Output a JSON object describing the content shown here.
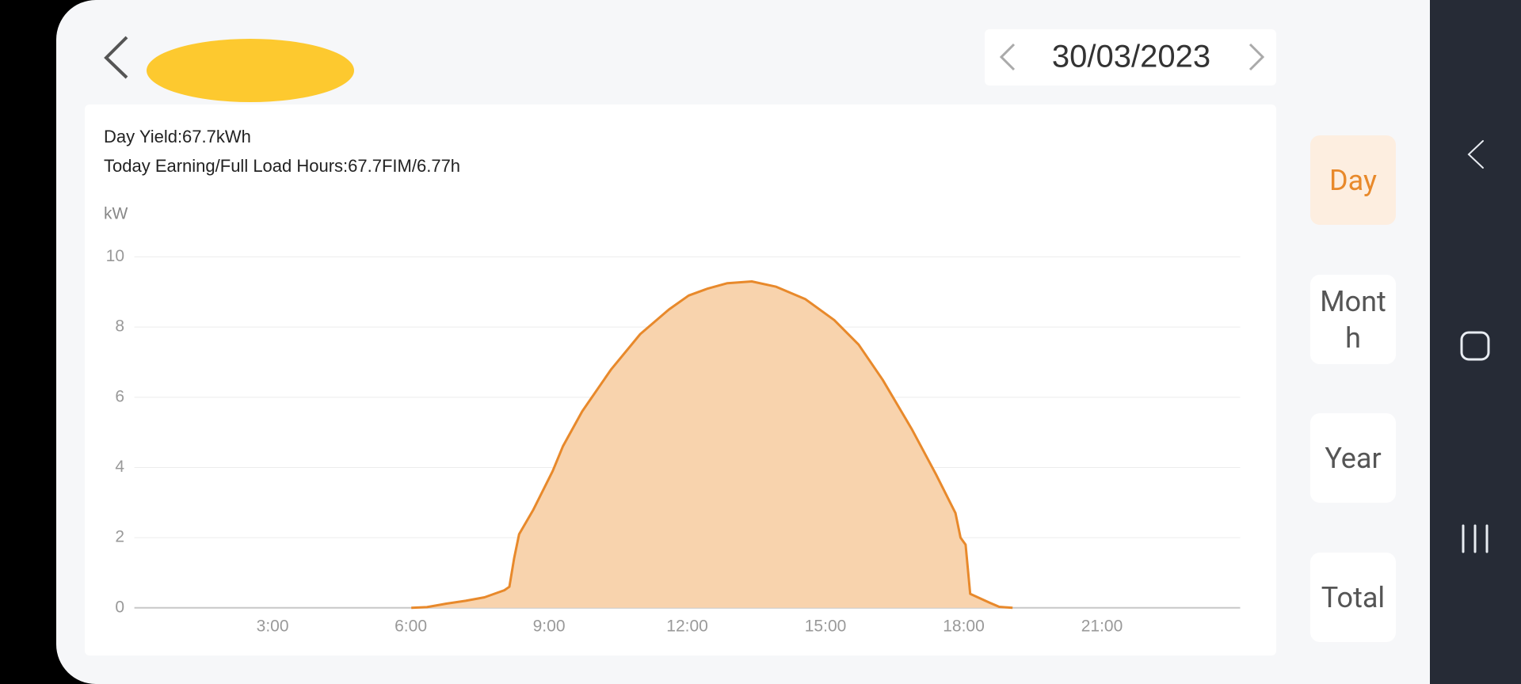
{
  "header": {
    "date": "30/03/2023"
  },
  "summary": {
    "day_yield": "Day Yield:67.7kWh",
    "earning": "Today Earning/Full Load Hours:67.7FIM/6.77h"
  },
  "chart_data": {
    "type": "area",
    "y_label": "kW",
    "x": [
      6.01,
      6.35,
      6.77,
      7.19,
      7.6,
      8.03,
      8.14,
      8.24,
      8.35,
      8.66,
      9.08,
      9.3,
      9.72,
      10.35,
      10.98,
      11.6,
      12.03,
      12.45,
      12.87,
      13.4,
      13.93,
      14.56,
      15.19,
      15.72,
      16.24,
      16.87,
      17.4,
      17.82,
      17.93,
      18.04,
      18.14,
      18.56,
      18.77,
      19.06
    ],
    "values": [
      0,
      0.02,
      0.12,
      0.2,
      0.3,
      0.5,
      0.6,
      1.4,
      2.1,
      2.8,
      3.9,
      4.6,
      5.6,
      6.8,
      7.8,
      8.5,
      8.9,
      9.1,
      9.25,
      9.3,
      9.15,
      8.8,
      8.2,
      7.5,
      6.5,
      5.1,
      3.8,
      2.7,
      2.0,
      1.8,
      0.4,
      0.15,
      0.03,
      0
    ],
    "color": "#e8892b",
    "fill_color": "#f8d3ad",
    "xlim": [
      0,
      24
    ],
    "xticks": [
      {
        "value": 3,
        "label": "3:00"
      },
      {
        "value": 6,
        "label": "6:00"
      },
      {
        "value": 9,
        "label": "9:00"
      },
      {
        "value": 12,
        "label": "12:00"
      },
      {
        "value": 15,
        "label": "15:00"
      },
      {
        "value": 18,
        "label": "18:00"
      },
      {
        "value": 21,
        "label": "21:00"
      }
    ],
    "ylim": [
      0,
      10
    ],
    "yticks": [
      0,
      2,
      4,
      6,
      8,
      10
    ],
    "grid": true
  },
  "tabs": [
    "Day",
    "Month",
    "Year",
    "Total"
  ],
  "selected_tab": 0
}
